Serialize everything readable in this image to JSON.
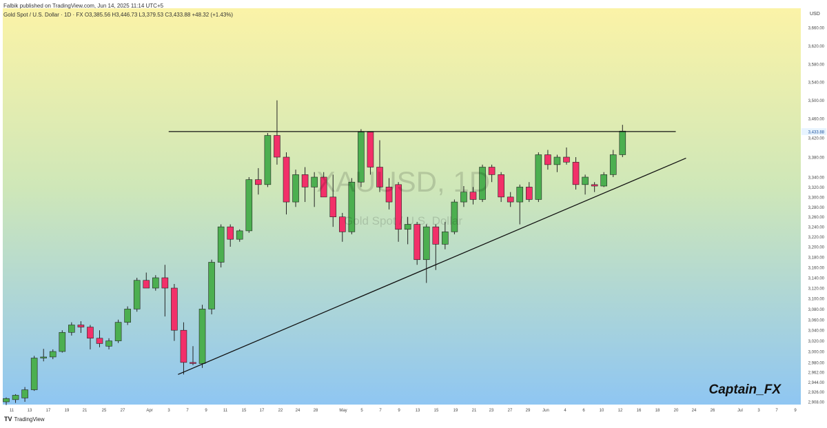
{
  "header": {
    "publisher_line": "Falbik published on TradingView.com, Jun 14, 2025 11:14 UTC+5",
    "ticker_line": "Gold Spot / U.S. Dollar · 1D · FX  O3,385.56  H3,446.73  L3,379.53  C3,433.88  +48.32 (+1.43%)"
  },
  "watermark": {
    "symbol": "XAUUSD, 1D",
    "name": "Gold Spot / U.S. Dollar"
  },
  "author_tag": "Captain_FX",
  "footer": {
    "logo": "TV",
    "brand": "TradingView"
  },
  "colors": {
    "up": "#4caf50",
    "down": "#f23069",
    "bg_top": "#fbf3a7",
    "bg_bottom": "#8fc6f2",
    "line": "#111111"
  },
  "chart_data": {
    "type": "candlestick",
    "currency_label": "USD",
    "price_axis_ticks": [
      "3,660.00",
      "3,620.00",
      "3,580.00",
      "3,540.00",
      "3,500.00",
      "3,460.00",
      "3,420.00",
      "3,380.00",
      "3,340.00",
      "3,320.00",
      "3,300.00",
      "3,280.00",
      "3,260.00",
      "3,240.00",
      "3,220.00",
      "3,200.00",
      "3,180.00",
      "3,160.00",
      "3,140.00",
      "3,120.00",
      "3,100.00",
      "3,080.00",
      "3,060.00",
      "3,040.00",
      "3,020.00",
      "3,000.00",
      "2,980.00",
      "2,962.00",
      "2,944.00",
      "2,926.00",
      "2,908.00"
    ],
    "time_axis_ticks": [
      "11",
      "13",
      "17",
      "19",
      "21",
      "25",
      "27",
      "Apr",
      "3",
      "7",
      "9",
      "11",
      "15",
      "17",
      "22",
      "24",
      "28",
      "May",
      "5",
      "7",
      "9",
      "13",
      "15",
      "19",
      "21",
      "23",
      "27",
      "29",
      "Jun",
      "4",
      "6",
      "10",
      "12",
      "16",
      "18",
      "20",
      "24",
      "26",
      "Jul",
      "3",
      "7",
      "9"
    ],
    "last_price": "3,433.88",
    "candles": [
      {
        "o": 2908,
        "h": 2916,
        "l": 2902,
        "c": 2914
      },
      {
        "o": 2912,
        "h": 2922,
        "l": 2906,
        "c": 2920
      },
      {
        "o": 2915,
        "h": 2935,
        "l": 2908,
        "c": 2930
      },
      {
        "o": 2930,
        "h": 2992,
        "l": 2928,
        "c": 2988
      },
      {
        "o": 2988,
        "h": 3005,
        "l": 2982,
        "c": 2990
      },
      {
        "o": 2990,
        "h": 3004,
        "l": 2986,
        "c": 3000
      },
      {
        "o": 3000,
        "h": 3040,
        "l": 2998,
        "c": 3036
      },
      {
        "o": 3036,
        "h": 3055,
        "l": 3030,
        "c": 3050
      },
      {
        "o": 3050,
        "h": 3057,
        "l": 3035,
        "c": 3046
      },
      {
        "o": 3046,
        "h": 3050,
        "l": 3004,
        "c": 3025
      },
      {
        "o": 3025,
        "h": 3040,
        "l": 3008,
        "c": 3015
      },
      {
        "o": 3010,
        "h": 3025,
        "l": 3004,
        "c": 3020
      },
      {
        "o": 3020,
        "h": 3060,
        "l": 3016,
        "c": 3055
      },
      {
        "o": 3055,
        "h": 3085,
        "l": 3050,
        "c": 3080
      },
      {
        "o": 3080,
        "h": 3140,
        "l": 3075,
        "c": 3135
      },
      {
        "o": 3135,
        "h": 3150,
        "l": 3120,
        "c": 3120
      },
      {
        "o": 3120,
        "h": 3145,
        "l": 3115,
        "c": 3140
      },
      {
        "o": 3140,
        "h": 3165,
        "l": 3066,
        "c": 3120
      },
      {
        "o": 3120,
        "h": 3128,
        "l": 3020,
        "c": 3040
      },
      {
        "o": 3040,
        "h": 3055,
        "l": 2958,
        "c": 2980
      },
      {
        "o": 2980,
        "h": 3010,
        "l": 2975,
        "c": 2978
      },
      {
        "o": 2978,
        "h": 3088,
        "l": 2970,
        "c": 3080
      },
      {
        "o": 3080,
        "h": 3175,
        "l": 3070,
        "c": 3170
      },
      {
        "o": 3170,
        "h": 3245,
        "l": 3160,
        "c": 3240
      },
      {
        "o": 3240,
        "h": 3245,
        "l": 3200,
        "c": 3215
      },
      {
        "o": 3215,
        "h": 3235,
        "l": 3210,
        "c": 3232
      },
      {
        "o": 3232,
        "h": 3340,
        "l": 3228,
        "c": 3335
      },
      {
        "o": 3335,
        "h": 3358,
        "l": 3305,
        "c": 3325
      },
      {
        "o": 3325,
        "h": 3430,
        "l": 3320,
        "c": 3425
      },
      {
        "o": 3425,
        "h": 3500,
        "l": 3365,
        "c": 3380
      },
      {
        "o": 3380,
        "h": 3390,
        "l": 3265,
        "c": 3290
      },
      {
        "o": 3290,
        "h": 3355,
        "l": 3280,
        "c": 3345
      },
      {
        "o": 3345,
        "h": 3360,
        "l": 3290,
        "c": 3320
      },
      {
        "o": 3320,
        "h": 3350,
        "l": 3280,
        "c": 3340
      },
      {
        "o": 3340,
        "h": 3350,
        "l": 3300,
        "c": 3300
      },
      {
        "o": 3300,
        "h": 3345,
        "l": 3240,
        "c": 3260
      },
      {
        "o": 3260,
        "h": 3268,
        "l": 3210,
        "c": 3230
      },
      {
        "o": 3230,
        "h": 3338,
        "l": 3225,
        "c": 3330
      },
      {
        "o": 3330,
        "h": 3438,
        "l": 3320,
        "c": 3432
      },
      {
        "o": 3432,
        "h": 3433,
        "l": 3345,
        "c": 3360
      },
      {
        "o": 3360,
        "h": 3415,
        "l": 3310,
        "c": 3320
      },
      {
        "o": 3320,
        "h": 3338,
        "l": 3275,
        "c": 3290
      },
      {
        "o": 3325,
        "h": 3330,
        "l": 3210,
        "c": 3235
      },
      {
        "o": 3235,
        "h": 3260,
        "l": 3205,
        "c": 3245
      },
      {
        "o": 3245,
        "h": 3250,
        "l": 3165,
        "c": 3175
      },
      {
        "o": 3175,
        "h": 3245,
        "l": 3130,
        "c": 3240
      },
      {
        "o": 3240,
        "h": 3245,
        "l": 3155,
        "c": 3205
      },
      {
        "o": 3205,
        "h": 3250,
        "l": 3195,
        "c": 3230
      },
      {
        "o": 3230,
        "h": 3295,
        "l": 3225,
        "c": 3290
      },
      {
        "o": 3290,
        "h": 3322,
        "l": 3280,
        "c": 3310
      },
      {
        "o": 3310,
        "h": 3320,
        "l": 3285,
        "c": 3295
      },
      {
        "o": 3295,
        "h": 3365,
        "l": 3290,
        "c": 3360
      },
      {
        "o": 3360,
        "h": 3365,
        "l": 3330,
        "c": 3345
      },
      {
        "o": 3345,
        "h": 3350,
        "l": 3290,
        "c": 3300
      },
      {
        "o": 3300,
        "h": 3310,
        "l": 3280,
        "c": 3290
      },
      {
        "o": 3290,
        "h": 3325,
        "l": 3245,
        "c": 3320
      },
      {
        "o": 3320,
        "h": 3330,
        "l": 3290,
        "c": 3295
      },
      {
        "o": 3295,
        "h": 3390,
        "l": 3290,
        "c": 3385
      },
      {
        "o": 3385,
        "h": 3395,
        "l": 3355,
        "c": 3365
      },
      {
        "o": 3365,
        "h": 3385,
        "l": 3350,
        "c": 3380
      },
      {
        "o": 3380,
        "h": 3400,
        "l": 3365,
        "c": 3370
      },
      {
        "o": 3370,
        "h": 3380,
        "l": 3315,
        "c": 3325
      },
      {
        "o": 3325,
        "h": 3345,
        "l": 3305,
        "c": 3340
      },
      {
        "o": 3325,
        "h": 3330,
        "l": 3310,
        "c": 3322
      },
      {
        "o": 3322,
        "h": 3350,
        "l": 3320,
        "c": 3345
      },
      {
        "o": 3345,
        "h": 3395,
        "l": 3340,
        "c": 3385
      },
      {
        "o": 3385,
        "h": 3447,
        "l": 3380,
        "c": 3434
      }
    ],
    "lines": [
      {
        "name": "resistance",
        "x1": 9,
        "y1": 3433,
        "x2": 10.7,
        "y2": 3433
      },
      {
        "name": "support",
        "x1": 9.05,
        "y1": 2958,
        "x2": 10.73,
        "y2": 3375
      }
    ]
  }
}
